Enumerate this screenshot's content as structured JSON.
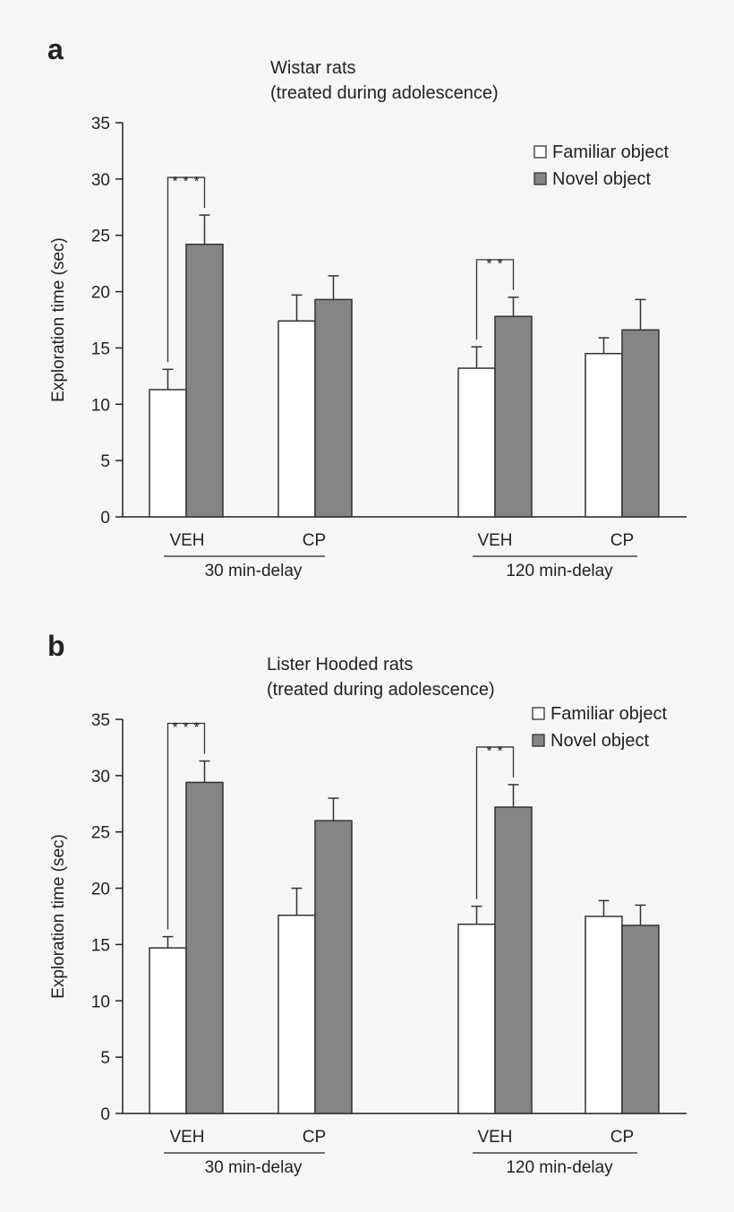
{
  "chart_data": [
    {
      "panel_label": "a",
      "type": "bar",
      "title_lines": [
        "Wistar rats",
        "(treated during adolescence)"
      ],
      "ylabel": "Exploration time (sec)",
      "ylim": [
        0,
        35
      ],
      "yticks": [
        0,
        5,
        10,
        15,
        20,
        25,
        30,
        35
      ],
      "legend_position": "top-right",
      "categories": [
        "VEH",
        "CP",
        "VEH",
        "CP"
      ],
      "groups": [
        {
          "label": "30 min-delay",
          "categories": [
            "VEH",
            "CP"
          ]
        },
        {
          "label": "120 min-delay",
          "categories": [
            "VEH",
            "CP"
          ]
        }
      ],
      "series": [
        {
          "name": "Familiar object",
          "color": "#ffffff",
          "values": [
            11.3,
            17.4,
            13.2,
            14.5
          ],
          "errors": [
            1.8,
            2.3,
            1.9,
            1.4
          ]
        },
        {
          "name": "Novel object",
          "color": "#858585",
          "values": [
            24.2,
            19.3,
            17.8,
            16.6
          ],
          "errors": [
            2.6,
            2.1,
            1.7,
            2.7
          ]
        }
      ],
      "significance": [
        {
          "category_index": 0,
          "label": "* * *"
        },
        {
          "category_index": 2,
          "label": "* *"
        }
      ]
    },
    {
      "panel_label": "b",
      "type": "bar",
      "title_lines": [
        "Lister Hooded rats",
        "(treated during adolescence)"
      ],
      "ylabel": "Exploration time (sec)",
      "ylim": [
        0,
        35
      ],
      "yticks": [
        0,
        5,
        10,
        15,
        20,
        25,
        30,
        35
      ],
      "legend_position": "top-right",
      "categories": [
        "VEH",
        "CP",
        "VEH",
        "CP"
      ],
      "groups": [
        {
          "label": "30 min-delay",
          "categories": [
            "VEH",
            "CP"
          ]
        },
        {
          "label": "120 min-delay",
          "categories": [
            "VEH",
            "CP"
          ]
        }
      ],
      "series": [
        {
          "name": "Familiar object",
          "color": "#ffffff",
          "values": [
            14.7,
            17.6,
            16.8,
            17.5
          ],
          "errors": [
            1.0,
            2.4,
            1.6,
            1.4
          ]
        },
        {
          "name": "Novel object",
          "color": "#858585",
          "values": [
            29.4,
            26.0,
            27.2,
            16.7
          ],
          "errors": [
            1.9,
            2.0,
            2.0,
            1.8
          ]
        }
      ],
      "significance": [
        {
          "category_index": 0,
          "label": "* * *"
        },
        {
          "category_index": 2,
          "label": "* *"
        }
      ]
    }
  ]
}
